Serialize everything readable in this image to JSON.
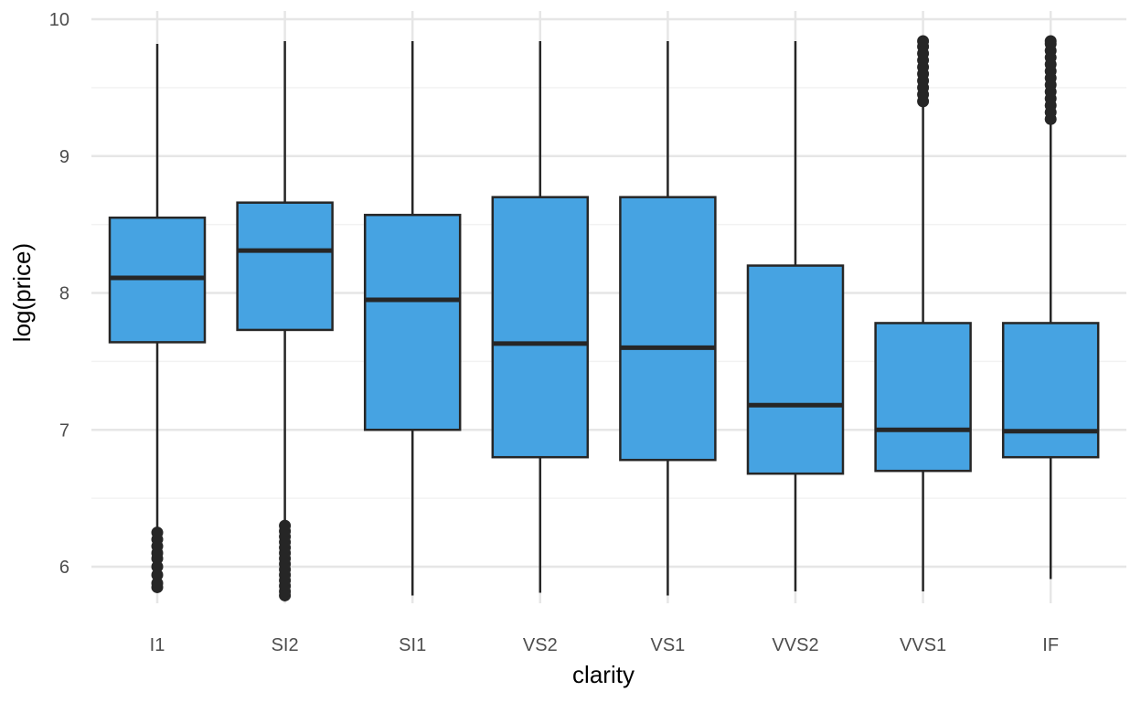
{
  "chart_data": {
    "type": "box",
    "xlabel": "clarity",
    "ylabel": "log(price)",
    "ylim": [
      5.6,
      10.05
    ],
    "yticks": [
      6,
      7,
      8,
      9,
      10
    ],
    "grid": true,
    "fill_color": "#46a3e2",
    "line_color": "#262626",
    "categories": [
      "I1",
      "SI2",
      "SI1",
      "VS2",
      "VS1",
      "VVS2",
      "VVS1",
      "IF"
    ],
    "boxes": [
      {
        "label": "I1",
        "whisker_low": 5.87,
        "q1": 7.64,
        "median": 8.11,
        "q3": 8.55,
        "whisker_high": 9.82,
        "outliers": [
          5.85,
          5.88,
          5.94,
          6.0,
          6.06,
          6.1,
          6.15,
          6.2,
          6.25
        ]
      },
      {
        "label": "SI2",
        "whisker_low": 5.79,
        "q1": 7.73,
        "median": 8.31,
        "q3": 8.66,
        "whisker_high": 9.84,
        "outliers": [
          5.79,
          5.82,
          5.86,
          5.9,
          5.94,
          5.98,
          6.02,
          6.06,
          6.1,
          6.14,
          6.18,
          6.22,
          6.26,
          6.3
        ]
      },
      {
        "label": "SI1",
        "whisker_low": 5.79,
        "q1": 7.0,
        "median": 7.95,
        "q3": 8.57,
        "whisker_high": 9.84,
        "outliers": []
      },
      {
        "label": "VS2",
        "whisker_low": 5.81,
        "q1": 6.8,
        "median": 7.63,
        "q3": 8.7,
        "whisker_high": 9.84,
        "outliers": []
      },
      {
        "label": "VS1",
        "whisker_low": 5.79,
        "q1": 6.78,
        "median": 7.6,
        "q3": 8.7,
        "whisker_high": 9.84,
        "outliers": []
      },
      {
        "label": "VVS2",
        "whisker_low": 5.82,
        "q1": 6.68,
        "median": 7.18,
        "q3": 8.2,
        "whisker_high": 9.84,
        "outliers": []
      },
      {
        "label": "VVS1",
        "whisker_low": 5.82,
        "q1": 6.7,
        "median": 7.0,
        "q3": 7.78,
        "whisker_high": 9.38,
        "outliers": [
          9.4,
          9.45,
          9.5,
          9.55,
          9.6,
          9.65,
          9.7,
          9.75,
          9.8,
          9.84
        ]
      },
      {
        "label": "IF",
        "whisker_low": 5.91,
        "q1": 6.8,
        "median": 6.99,
        "q3": 7.78,
        "whisker_high": 9.25,
        "outliers": [
          9.27,
          9.32,
          9.37,
          9.42,
          9.47,
          9.52,
          9.57,
          9.62,
          9.67,
          9.72,
          9.77,
          9.82,
          9.84
        ]
      }
    ]
  }
}
